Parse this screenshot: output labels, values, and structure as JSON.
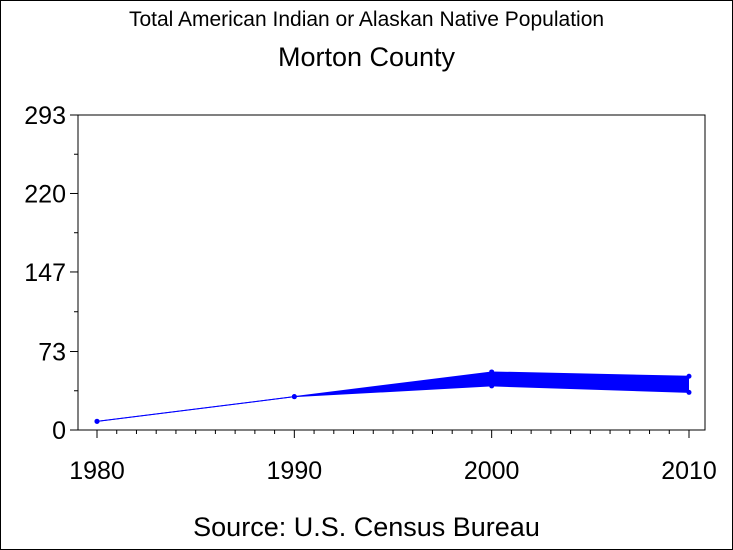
{
  "chart_data": {
    "type": "line",
    "title": "Total American Indian or Alaskan Native Population",
    "subtitle": "Morton County",
    "source": "Source: U.S. Census Bureau",
    "x": [
      1980,
      1990,
      2000,
      2010
    ],
    "x_ticks": [
      "1980",
      "1990",
      "2000",
      "2010"
    ],
    "y_ticks": [
      "0",
      "73",
      "147",
      "220",
      "293"
    ],
    "ylim": [
      0,
      293
    ],
    "xlim": [
      1980,
      2010
    ],
    "series": [
      {
        "values": [
          8,
          31,
          54,
          50
        ],
        "color": "#0000ff"
      },
      {
        "values": [
          8,
          31,
          41,
          35
        ],
        "color": "#0000ff"
      }
    ],
    "band_fill": "#0000ff",
    "grid": false
  }
}
